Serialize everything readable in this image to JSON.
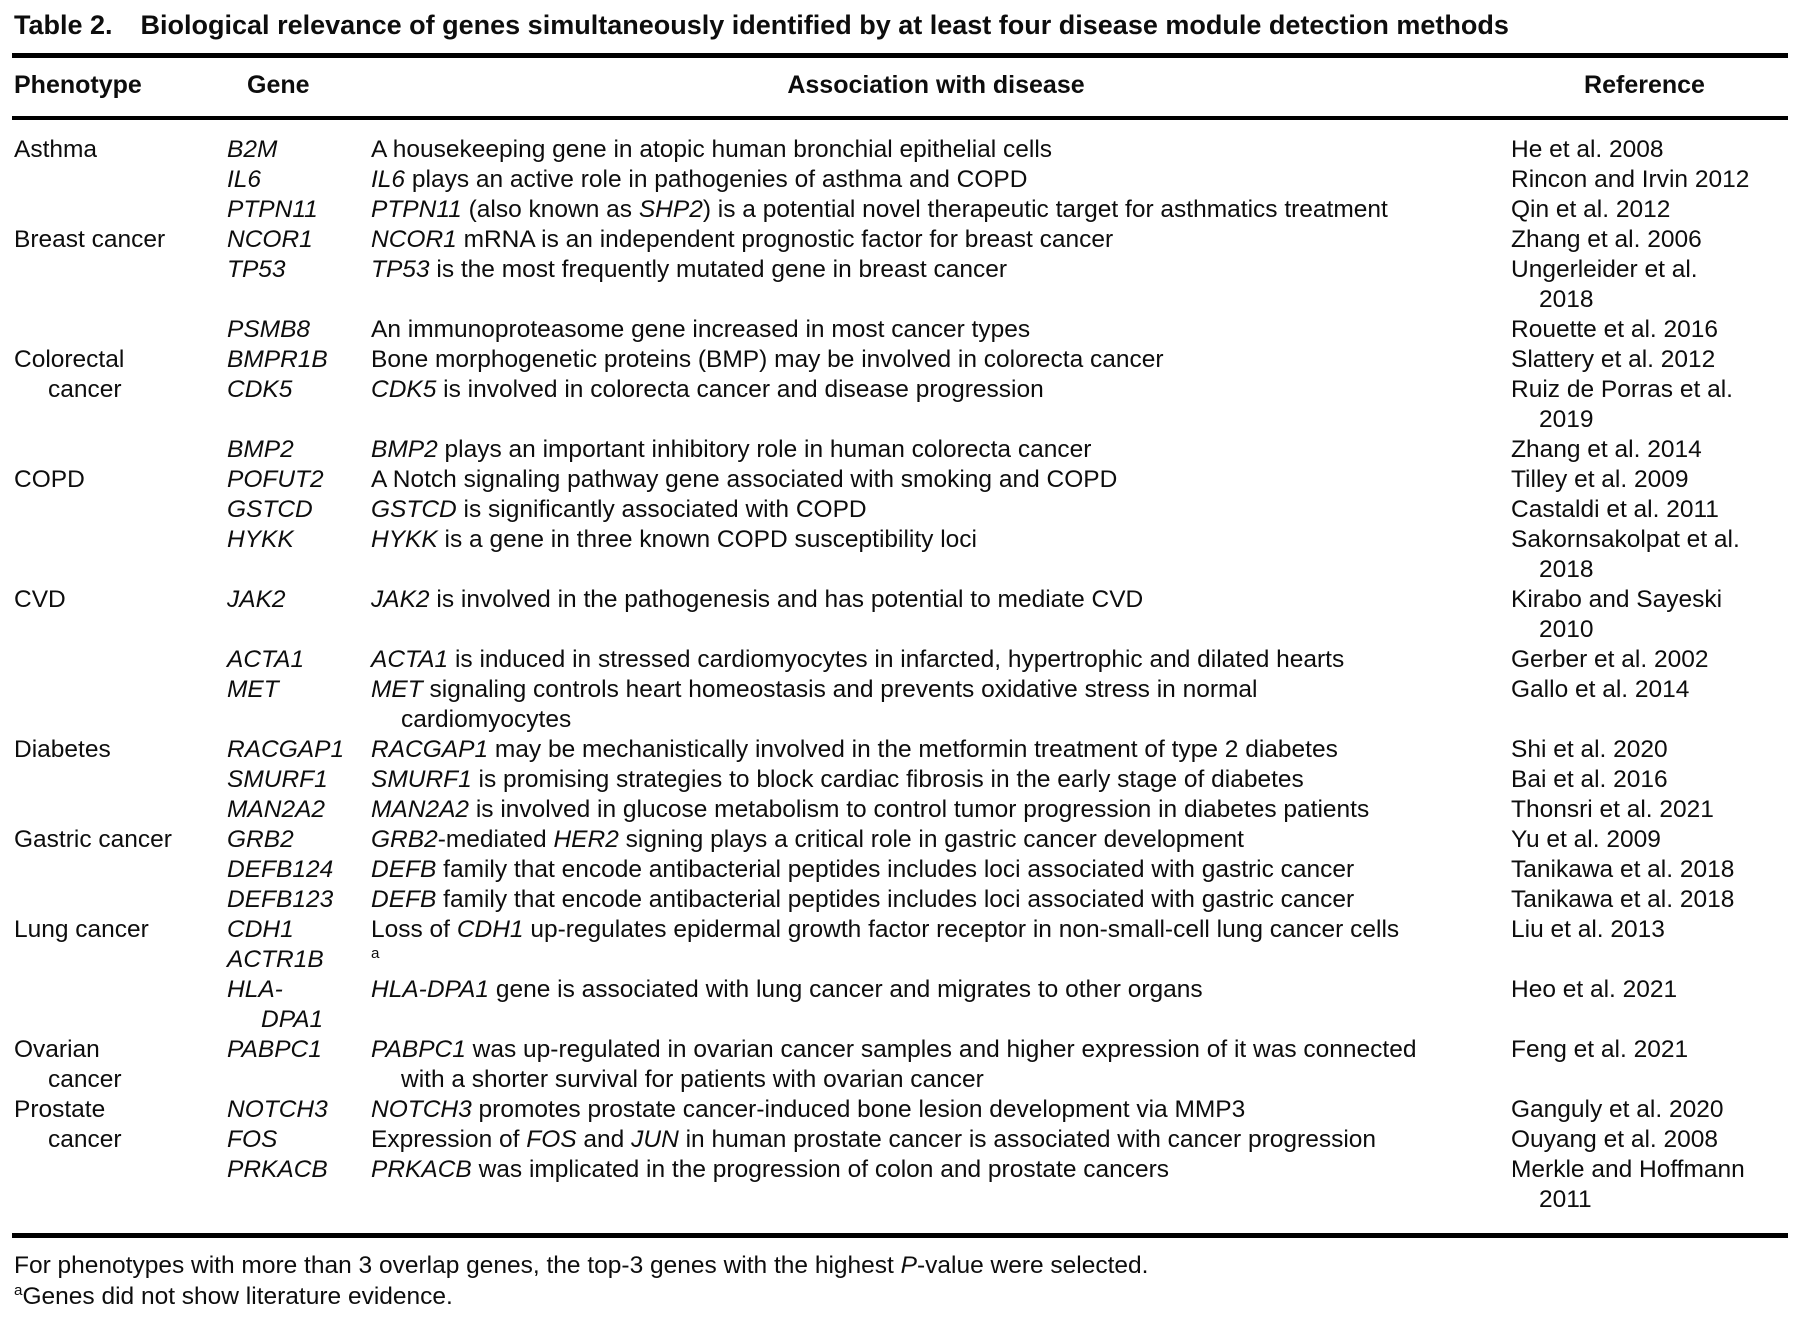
{
  "title": {
    "label": "Table 2.",
    "text": "Biological relevance of genes simultaneously identified by at least four disease module detection methods"
  },
  "columns": [
    "Phenotype",
    "Gene",
    "Association with disease",
    "Reference"
  ],
  "groups": [
    {
      "phenotype": [
        {
          "t": "Asthma"
        }
      ],
      "rows": [
        {
          "gene": [
            {
              "t": "B2M"
            }
          ],
          "association": [
            {
              "t": "A housekeeping gene in atopic human bronchial epithelial cells"
            }
          ],
          "reference": [
            {
              "t": "He et al. 2008"
            }
          ]
        },
        {
          "gene": [
            {
              "t": "IL6"
            }
          ],
          "association": [
            {
              "t": "IL6",
              "i": 1
            },
            {
              "t": " plays an active role in pathogenies of asthma and COPD"
            }
          ],
          "reference": [
            {
              "t": "Rincon and Irvin 2012"
            }
          ]
        },
        {
          "gene": [
            {
              "t": "PTPN11"
            }
          ],
          "association": [
            {
              "t": "PTPN11",
              "i": 1
            },
            {
              "t": " (also known as "
            },
            {
              "t": "SHP2",
              "i": 1
            },
            {
              "t": ") is a potential novel therapeutic target for asthmatics treatment"
            }
          ],
          "reference": [
            {
              "t": "Qin et al. 2012"
            }
          ]
        }
      ]
    },
    {
      "phenotype": [
        {
          "t": "Breast cancer"
        }
      ],
      "rows": [
        {
          "gene": [
            {
              "t": "NCOR1"
            }
          ],
          "association": [
            {
              "t": "NCOR1",
              "i": 1
            },
            {
              "t": " mRNA is an independent prognostic factor for breast cancer"
            }
          ],
          "reference": [
            {
              "t": "Zhang et al. 2006"
            }
          ]
        },
        {
          "gene": [
            {
              "t": "TP53"
            }
          ],
          "association": [
            {
              "t": "TP53",
              "i": 1
            },
            {
              "t": " is the most frequently mutated gene in breast cancer"
            }
          ],
          "reference": [
            {
              "t": "Ungerleider et al."
            },
            {
              "br": 1
            },
            {
              "t": "2018"
            }
          ]
        },
        {
          "gene": [
            {
              "t": "PSMB8"
            }
          ],
          "association": [
            {
              "t": "An immunoproteasome gene increased in most cancer types"
            }
          ],
          "reference": [
            {
              "t": "Rouette et al. 2016"
            }
          ]
        }
      ]
    },
    {
      "phenotype": [
        {
          "t": "Colorectal"
        },
        {
          "br": 1
        },
        {
          "t": "cancer"
        }
      ],
      "rows": [
        {
          "gene": [
            {
              "t": "BMPR1B"
            }
          ],
          "association": [
            {
              "t": "Bone morphogenetic proteins (BMP) may be involved in colorecta cancer"
            }
          ],
          "reference": [
            {
              "t": "Slattery et al. 2012"
            }
          ]
        },
        {
          "gene": [
            {
              "t": "CDK5"
            }
          ],
          "association": [
            {
              "t": "CDK5",
              "i": 1
            },
            {
              "t": " is involved in colorecta cancer and disease progression"
            }
          ],
          "reference": [
            {
              "t": "Ruiz de Porras et al."
            },
            {
              "br": 1
            },
            {
              "t": "2019"
            }
          ]
        },
        {
          "gene": [
            {
              "t": "BMP2"
            }
          ],
          "association": [
            {
              "t": "BMP2",
              "i": 1
            },
            {
              "t": " plays an important inhibitory role in human colorecta cancer"
            }
          ],
          "reference": [
            {
              "t": "Zhang et al. 2014"
            }
          ]
        }
      ]
    },
    {
      "phenotype": [
        {
          "t": "COPD"
        }
      ],
      "rows": [
        {
          "gene": [
            {
              "t": "POFUT2"
            }
          ],
          "association": [
            {
              "t": "A Notch signaling pathway gene associated with smoking and COPD"
            }
          ],
          "reference": [
            {
              "t": "Tilley et al. 2009"
            }
          ]
        },
        {
          "gene": [
            {
              "t": "GSTCD"
            }
          ],
          "association": [
            {
              "t": "GSTCD",
              "i": 1
            },
            {
              "t": " is significantly associated with COPD"
            }
          ],
          "reference": [
            {
              "t": "Castaldi et al. 2011"
            }
          ]
        },
        {
          "gene": [
            {
              "t": "HYKK"
            }
          ],
          "association": [
            {
              "t": "HYKK",
              "i": 1
            },
            {
              "t": " is a gene in three known COPD susceptibility loci"
            }
          ],
          "reference": [
            {
              "t": "Sakornsakolpat et al."
            },
            {
              "br": 1
            },
            {
              "t": "2018"
            }
          ]
        }
      ]
    },
    {
      "phenotype": [
        {
          "t": "CVD"
        }
      ],
      "rows": [
        {
          "gene": [
            {
              "t": "JAK2"
            }
          ],
          "association": [
            {
              "t": "JAK2",
              "i": 1
            },
            {
              "t": " is involved in the pathogenesis and has potential to mediate CVD"
            }
          ],
          "reference": [
            {
              "t": "Kirabo and Sayeski"
            },
            {
              "br": 1
            },
            {
              "t": "2010"
            }
          ]
        },
        {
          "gene": [
            {
              "t": "ACTA1"
            }
          ],
          "association": [
            {
              "t": "ACTA1",
              "i": 1
            },
            {
              "t": " is induced in stressed cardiomyocytes in infarcted, hypertrophic and dilated hearts"
            }
          ],
          "reference": [
            {
              "t": "Gerber et al. 2002"
            }
          ]
        },
        {
          "gene": [
            {
              "t": "MET"
            }
          ],
          "association": [
            {
              "t": "MET",
              "i": 1
            },
            {
              "t": " signaling controls heart homeostasis and prevents oxidative stress in normal"
            },
            {
              "br": 1
            },
            {
              "t": "cardiomyocytes"
            }
          ],
          "reference": [
            {
              "t": "Gallo et al. 2014"
            }
          ]
        }
      ]
    },
    {
      "phenotype": [
        {
          "t": "Diabetes"
        }
      ],
      "rows": [
        {
          "gene": [
            {
              "t": "RACGAP1"
            }
          ],
          "association": [
            {
              "t": "RACGAP1",
              "i": 1
            },
            {
              "t": " may be mechanistically involved in the metformin treatment of type 2 diabetes"
            }
          ],
          "reference": [
            {
              "t": "Shi et al. 2020"
            }
          ]
        },
        {
          "gene": [
            {
              "t": "SMURF1"
            }
          ],
          "association": [
            {
              "t": "SMURF1",
              "i": 1
            },
            {
              "t": " is promising strategies to block cardiac fibrosis in the early stage of diabetes"
            }
          ],
          "reference": [
            {
              "t": "Bai et al. 2016"
            }
          ]
        },
        {
          "gene": [
            {
              "t": "MAN2A2"
            }
          ],
          "association": [
            {
              "t": "MAN2A2",
              "i": 1
            },
            {
              "t": " is involved in glucose metabolism to control tumor progression in diabetes patients"
            }
          ],
          "reference": [
            {
              "t": "Thonsri et al. 2021"
            }
          ]
        }
      ]
    },
    {
      "phenotype": [
        {
          "t": "Gastric cancer"
        }
      ],
      "rows": [
        {
          "gene": [
            {
              "t": "GRB2"
            }
          ],
          "association": [
            {
              "t": "GRB2",
              "i": 1
            },
            {
              "t": "-mediated "
            },
            {
              "t": "HER2",
              "i": 1
            },
            {
              "t": " signing plays a critical role in gastric cancer development"
            }
          ],
          "reference": [
            {
              "t": "Yu et al. 2009"
            }
          ]
        },
        {
          "gene": [
            {
              "t": "DEFB124"
            }
          ],
          "association": [
            {
              "t": "DEFB",
              "i": 1
            },
            {
              "t": " family that encode antibacterial peptides includes loci associated with gastric cancer"
            }
          ],
          "reference": [
            {
              "t": "Tanikawa et al. 2018"
            }
          ]
        },
        {
          "gene": [
            {
              "t": "DEFB123"
            }
          ],
          "association": [
            {
              "t": "DEFB",
              "i": 1
            },
            {
              "t": " family that encode antibacterial peptides includes loci associated with gastric cancer"
            }
          ],
          "reference": [
            {
              "t": "Tanikawa et al. 2018"
            }
          ]
        }
      ]
    },
    {
      "phenotype": [
        {
          "t": "Lung cancer"
        }
      ],
      "rows": [
        {
          "gene": [
            {
              "t": "CDH1"
            }
          ],
          "association": [
            {
              "t": "Loss of "
            },
            {
              "t": "CDH1",
              "i": 1
            },
            {
              "t": " up-regulates epidermal growth factor receptor in non-small-cell lung cancer cells"
            }
          ],
          "reference": [
            {
              "t": "Liu et al. 2013"
            }
          ]
        },
        {
          "gene": [
            {
              "t": "ACTR1B"
            }
          ],
          "association": [
            {
              "t": "a",
              "sup": 1
            }
          ],
          "reference": []
        },
        {
          "gene": [
            {
              "t": "HLA-"
            },
            {
              "br": 1
            },
            {
              "t": "DPA1"
            }
          ],
          "association": [
            {
              "t": "HLA-DPA1",
              "i": 1
            },
            {
              "t": " gene is associated with lung cancer and migrates to other organs"
            }
          ],
          "reference": [
            {
              "t": "Heo et al. 2021"
            }
          ]
        }
      ]
    },
    {
      "phenotype": [
        {
          "t": "Ovarian"
        },
        {
          "br": 1
        },
        {
          "t": "cancer"
        }
      ],
      "rows": [
        {
          "gene": [
            {
              "t": "PABPC1"
            }
          ],
          "association": [
            {
              "t": "PABPC1",
              "i": 1
            },
            {
              "t": " was up-regulated in ovarian cancer samples and higher expression of it was connected"
            },
            {
              "br": 1
            },
            {
              "t": "with a shorter survival for patients with ovarian cancer"
            }
          ],
          "reference": [
            {
              "t": "Feng et al. 2021"
            }
          ]
        }
      ]
    },
    {
      "phenotype": [
        {
          "t": "Prostate"
        },
        {
          "br": 1
        },
        {
          "t": "cancer"
        }
      ],
      "rows": [
        {
          "gene": [
            {
              "t": "NOTCH3"
            }
          ],
          "association": [
            {
              "t": "NOTCH3",
              "i": 1
            },
            {
              "t": " promotes prostate cancer-induced bone lesion development via MMP3"
            }
          ],
          "reference": [
            {
              "t": "Ganguly et al. 2020"
            }
          ]
        },
        {
          "gene": [
            {
              "t": "FOS"
            }
          ],
          "association": [
            {
              "t": "Expression of "
            },
            {
              "t": "FOS",
              "i": 1
            },
            {
              "t": " and "
            },
            {
              "t": "JUN",
              "i": 1
            },
            {
              "t": " in human prostate cancer is associated with cancer progression"
            }
          ],
          "reference": [
            {
              "t": "Ouyang et al. 2008"
            }
          ]
        },
        {
          "gene": [
            {
              "t": "PRKACB"
            }
          ],
          "association": [
            {
              "t": "PRKACB",
              "i": 1
            },
            {
              "t": " was implicated in the progression of colon and prostate cancers"
            }
          ],
          "reference": [
            {
              "t": "Merkle and Hoffmann"
            },
            {
              "br": 1
            },
            {
              "t": "2011"
            }
          ]
        }
      ]
    }
  ],
  "footnotes": [
    [
      {
        "t": "For phenotypes with more than 3 overlap genes, the top-3 genes with the highest "
      },
      {
        "t": "P",
        "i": 1
      },
      {
        "t": "-value were selected."
      }
    ],
    [
      {
        "t": "a",
        "sup": 1
      },
      {
        "t": "Genes did not show literature evidence."
      }
    ]
  ]
}
